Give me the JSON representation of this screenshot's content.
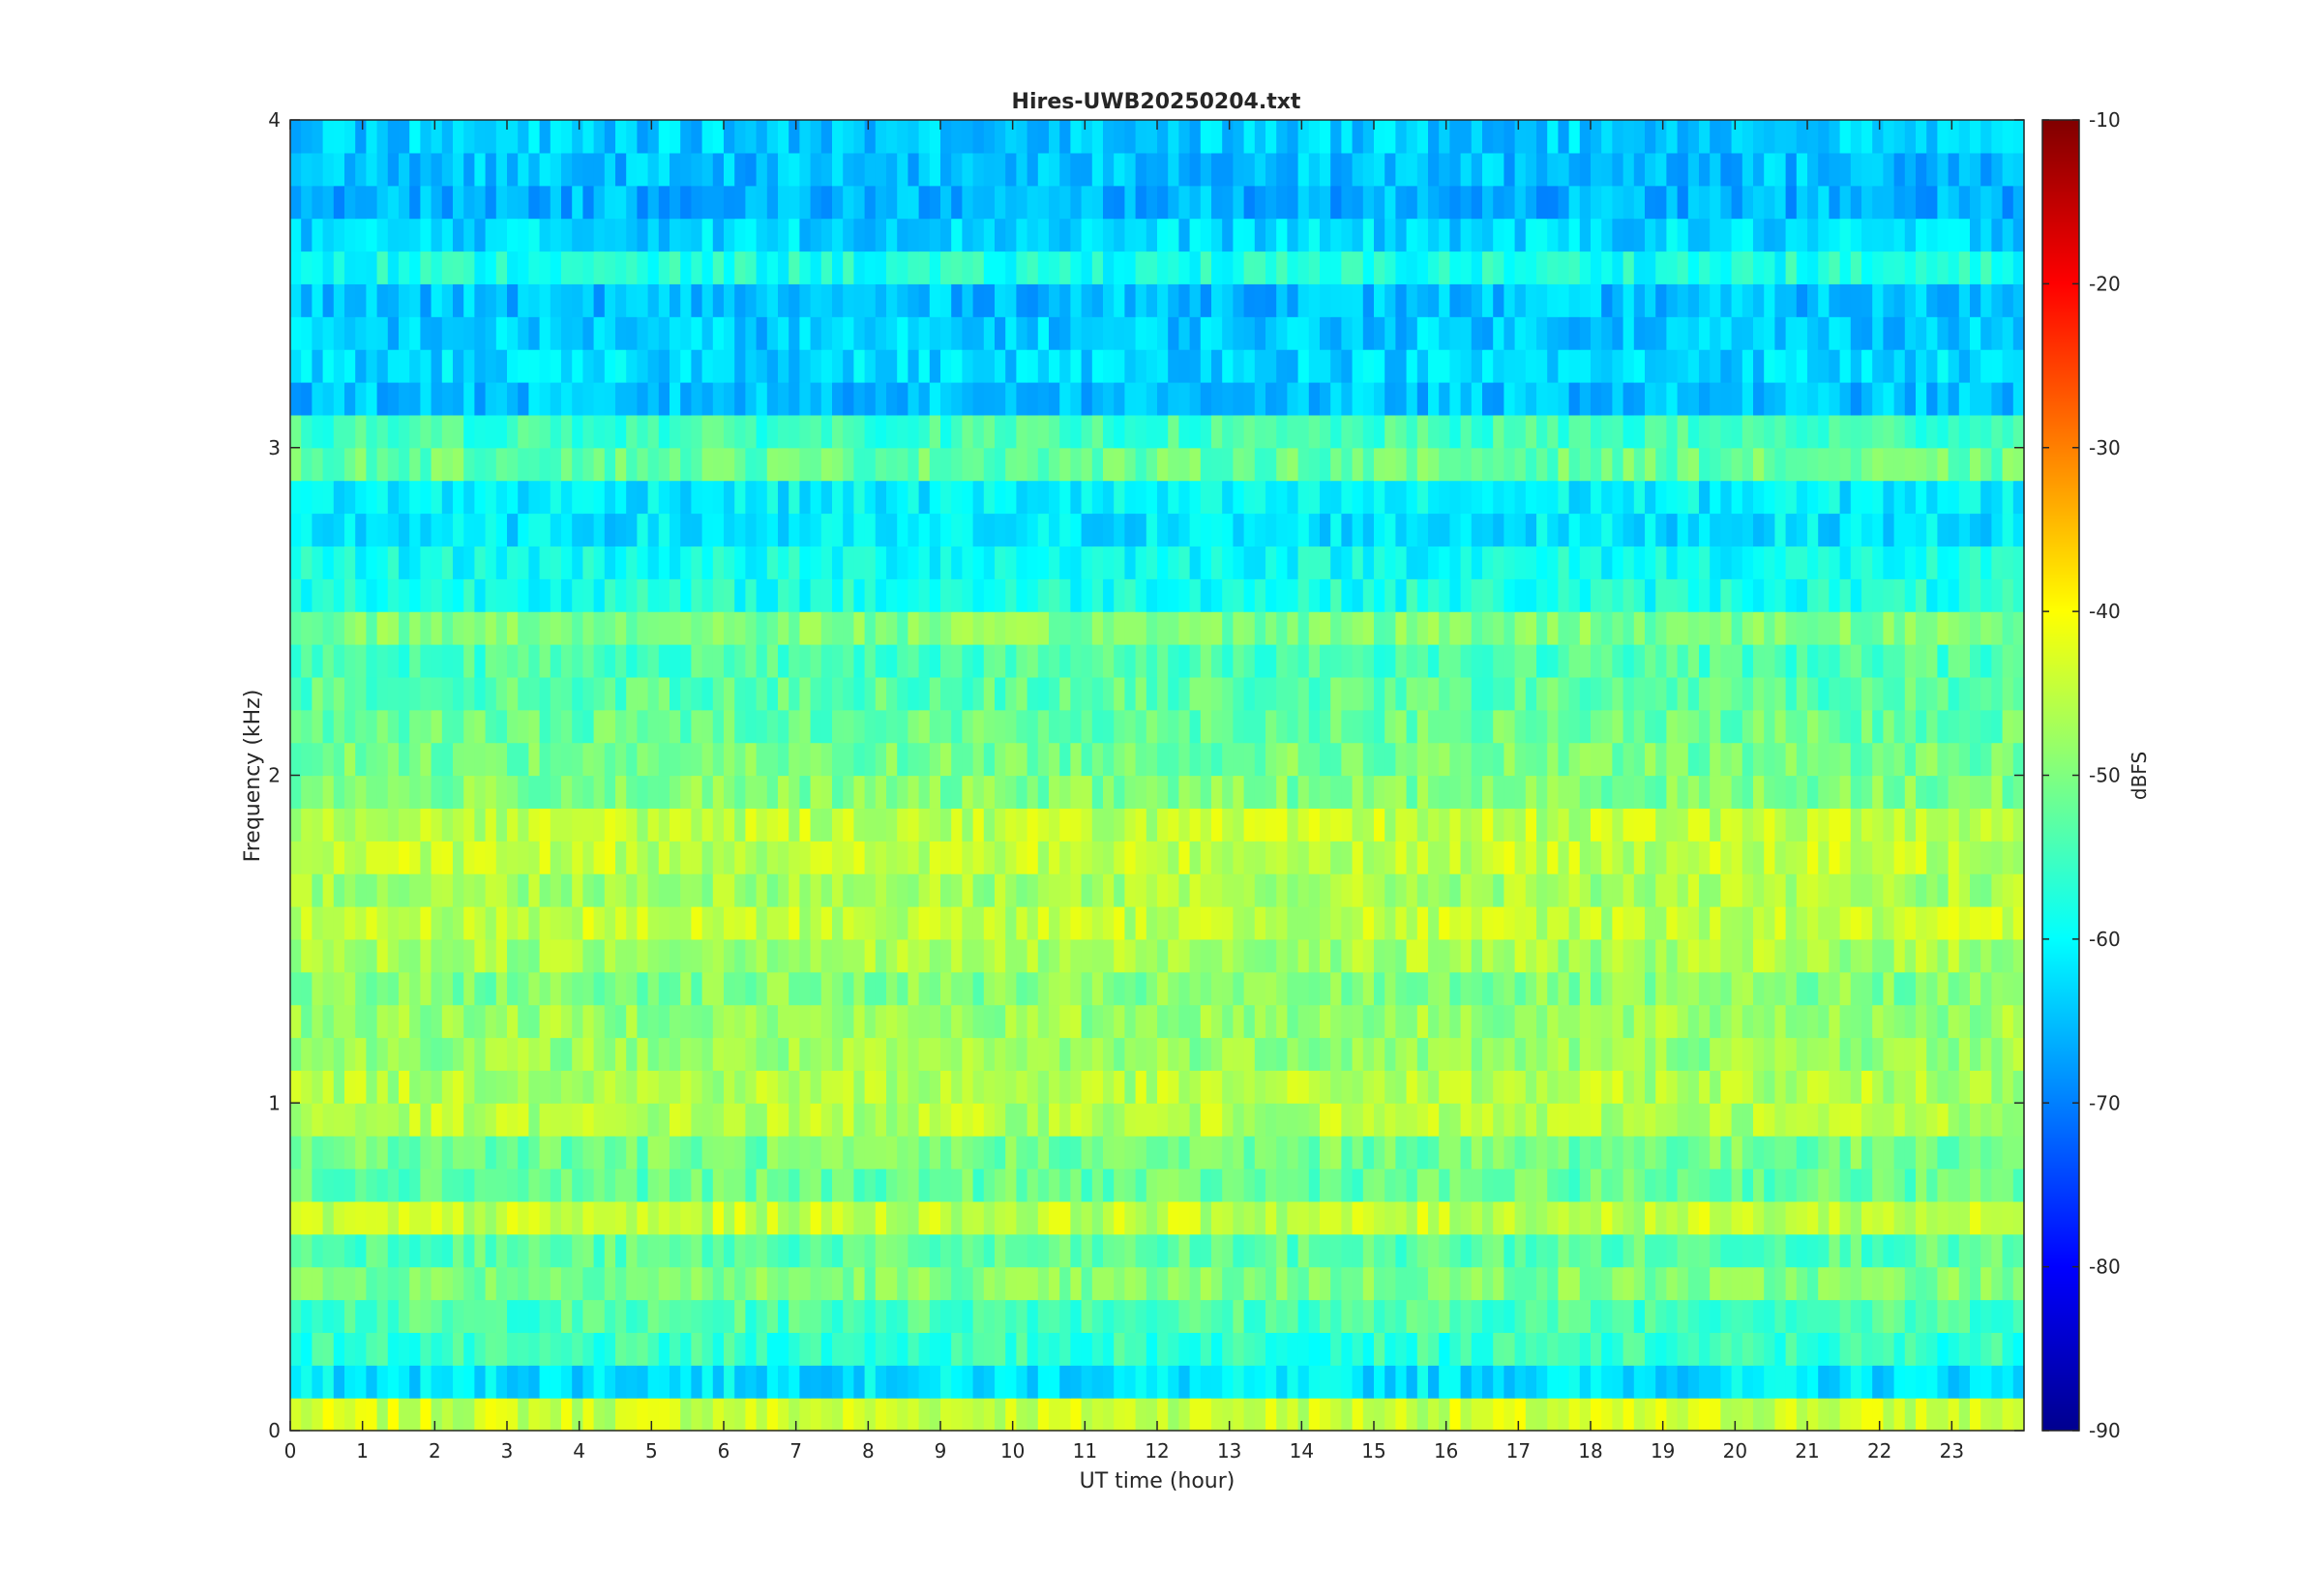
{
  "chart_data": {
    "type": "heatmap",
    "title": "Hires-UWB20250204.txt",
    "xlabel": "UT time (hour)",
    "ylabel": "Frequency (kHz)",
    "xlim": [
      0,
      24
    ],
    "ylim": [
      0,
      4
    ],
    "xticks": [
      "0",
      "1",
      "2",
      "3",
      "4",
      "5",
      "6",
      "7",
      "8",
      "9",
      "10",
      "11",
      "12",
      "13",
      "14",
      "15",
      "16",
      "17",
      "18",
      "19",
      "20",
      "21",
      "22",
      "23"
    ],
    "yticks": [
      "0",
      "1",
      "2",
      "3",
      "4"
    ],
    "colorbar": {
      "label": "dBFS",
      "clim": [
        -90,
        -10
      ],
      "ticks": [
        "-90",
        "-80",
        "-70",
        "-60",
        "-50",
        "-40",
        "-30",
        "-20",
        "-10"
      ],
      "colormap": "jet"
    },
    "bands": [
      {
        "f": 0.05,
        "level": -44
      },
      {
        "f": 0.15,
        "level": -62
      },
      {
        "f": 0.25,
        "level": -56
      },
      {
        "f": 0.35,
        "level": -54
      },
      {
        "f": 0.45,
        "level": -50
      },
      {
        "f": 0.55,
        "level": -53
      },
      {
        "f": 0.65,
        "level": -45
      },
      {
        "f": 0.75,
        "level": -52
      },
      {
        "f": 0.85,
        "level": -51
      },
      {
        "f": 0.95,
        "level": -46
      },
      {
        "f": 1.05,
        "level": -46
      },
      {
        "f": 1.15,
        "level": -48
      },
      {
        "f": 1.25,
        "level": -48
      },
      {
        "f": 1.35,
        "level": -50
      },
      {
        "f": 1.45,
        "level": -47
      },
      {
        "f": 1.55,
        "level": -45
      },
      {
        "f": 1.65,
        "level": -47
      },
      {
        "f": 1.75,
        "level": -45
      },
      {
        "f": 1.85,
        "level": -45
      },
      {
        "f": 1.95,
        "level": -50
      },
      {
        "f": 2.05,
        "level": -51
      },
      {
        "f": 2.15,
        "level": -52
      },
      {
        "f": 2.25,
        "level": -53
      },
      {
        "f": 2.35,
        "level": -54
      },
      {
        "f": 2.45,
        "level": -50
      },
      {
        "f": 2.55,
        "level": -58
      },
      {
        "f": 2.65,
        "level": -59
      },
      {
        "f": 2.75,
        "level": -62
      },
      {
        "f": 2.85,
        "level": -61
      },
      {
        "f": 2.95,
        "level": -52
      },
      {
        "f": 3.05,
        "level": -55
      },
      {
        "f": 3.15,
        "level": -65
      },
      {
        "f": 3.25,
        "level": -63
      },
      {
        "f": 3.35,
        "level": -64
      },
      {
        "f": 3.45,
        "level": -65
      },
      {
        "f": 3.55,
        "level": -58
      },
      {
        "f": 3.65,
        "level": -63
      },
      {
        "f": 3.75,
        "level": -66
      },
      {
        "f": 3.85,
        "level": -65
      },
      {
        "f": 3.95,
        "level": -64
      }
    ]
  }
}
